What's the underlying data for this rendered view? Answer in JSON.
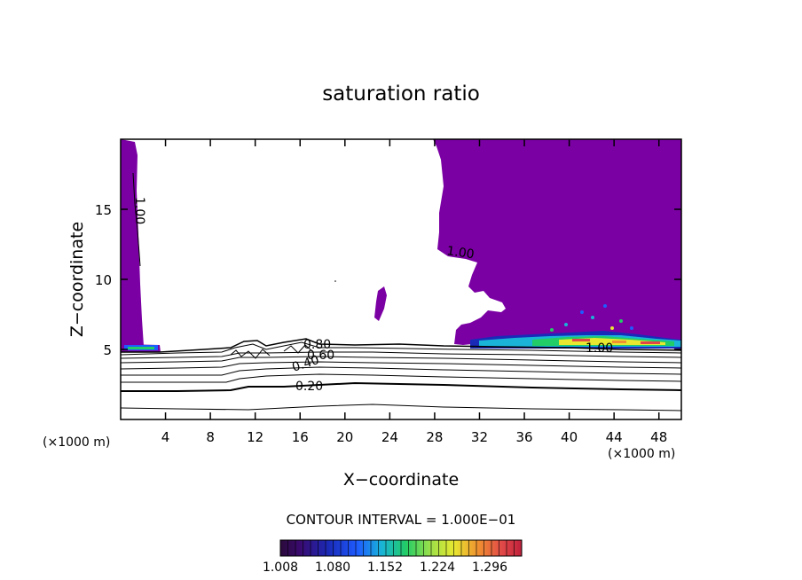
{
  "chart_data": {
    "type": "heatmap",
    "title": "saturation ratio",
    "xlabel": "X−coordinate",
    "ylabel": "Z−coordinate",
    "x_unit": "(×1000 m)",
    "x_unit_right": "(×1000 m)",
    "xlim": [
      0,
      50
    ],
    "ylim": [
      0,
      20
    ],
    "x_ticks": [
      4,
      8,
      12,
      16,
      20,
      24,
      28,
      32,
      36,
      40,
      44,
      48
    ],
    "y_ticks": [
      5,
      10,
      15
    ],
    "contour_interval_label": "CONTOUR INTERVAL = 1.000E−01",
    "contour_labels": [
      {
        "text": "1.00",
        "x": 1.5,
        "z": 15.0
      },
      {
        "text": "1.00",
        "x": 30.6,
        "z": 12.0
      },
      {
        "text": "1.00",
        "x": 42.3,
        "z": 5.1
      },
      {
        "text": "0.80",
        "x": 17.5,
        "z": 5.3
      },
      {
        "text": "0.60",
        "x": 17.2,
        "z": 4.6
      },
      {
        "text": "0.40",
        "x": 17.4,
        "z": 3.6
      },
      {
        "text": "0.20",
        "x": 16.6,
        "z": 2.3
      }
    ],
    "colorbar": {
      "ticks": [
        "1.008",
        "1.080",
        "1.152",
        "1.224",
        "1.296"
      ],
      "colors": [
        "#2a0a3a",
        "#3a0a6e",
        "#1a2ab8",
        "#1e5cff",
        "#19b4d8",
        "#22cc66",
        "#9ae04a",
        "#e8e830",
        "#f09030",
        "#e04848",
        "#c0203c"
      ]
    },
    "supersaturated_region_color": "#7b00a4"
  }
}
